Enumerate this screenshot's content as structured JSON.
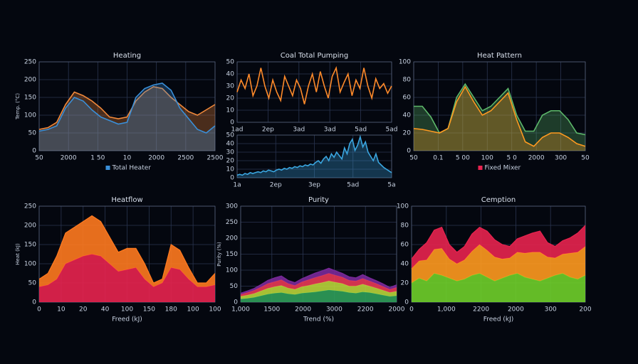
{
  "chart_data": [
    {
      "type": "area",
      "title": "Heating",
      "ylabel": "Temp. (°C)",
      "ylim": [
        0,
        250
      ],
      "yticks": [
        0,
        50,
        100,
        150,
        200,
        250
      ],
      "xlabels": [
        "50",
        "2000",
        "1 50",
        "10",
        "2000",
        "2500",
        "2500"
      ],
      "series": [
        {
          "color": "#f0883a",
          "values": [
            60,
            65,
            80,
            130,
            165,
            155,
            140,
            120,
            95,
            90,
            95,
            140,
            165,
            180,
            175,
            150,
            130,
            110,
            100,
            115,
            130
          ]
        },
        {
          "name": "Total Heater",
          "color": "#3a8fd8",
          "values": [
            55,
            60,
            70,
            120,
            150,
            140,
            115,
            95,
            85,
            75,
            80,
            150,
            175,
            185,
            190,
            170,
            120,
            90,
            60,
            50,
            70
          ]
        }
      ]
    },
    {
      "type": "line",
      "title": "Coal Total Pumping",
      "ylim": [
        0,
        50
      ],
      "yticks": [
        0,
        10,
        20,
        30,
        40,
        50
      ],
      "xlabels": [
        "1ad",
        "2ep",
        "3ad",
        "3ad",
        "5ad",
        "5ad"
      ],
      "series": [
        {
          "color": "#ff8a2a",
          "values": [
            25,
            35,
            28,
            40,
            22,
            30,
            45,
            30,
            20,
            35,
            25,
            18,
            38,
            30,
            22,
            35,
            28,
            15,
            30,
            40,
            25,
            42,
            30,
            20,
            38,
            45,
            25,
            33,
            40,
            22,
            35,
            28,
            45,
            30,
            20,
            36,
            28,
            32,
            24,
            30
          ]
        }
      ]
    },
    {
      "type": "area",
      "ylim": [
        0,
        50
      ],
      "yticks": [
        0,
        10,
        20,
        30,
        40,
        50
      ],
      "xlabels": [
        "1a",
        "2ep",
        "3ep",
        "5ad",
        "5a"
      ],
      "series": [
        {
          "color": "#3aa6e0",
          "values": [
            3,
            4,
            3,
            5,
            4,
            6,
            5,
            6,
            7,
            6,
            8,
            7,
            9,
            8,
            7,
            9,
            10,
            9,
            11,
            10,
            12,
            11,
            13,
            12,
            14,
            13,
            15,
            14,
            16,
            15,
            18,
            20,
            17,
            22,
            25,
            20,
            28,
            24,
            30,
            26,
            22,
            35,
            28,
            40,
            45,
            32,
            38,
            48,
            36,
            42,
            30,
            25,
            20,
            28,
            18,
            15,
            12,
            10,
            8,
            6
          ]
        }
      ]
    },
    {
      "type": "area",
      "title": "Heat Pattern",
      "ylim": [
        0,
        100
      ],
      "yticks": [
        0,
        20,
        40,
        60,
        80,
        100
      ],
      "xlabels": [
        "50",
        "0.1",
        "5 00",
        "100",
        "5 0",
        "2000",
        "300",
        "50"
      ],
      "series": [
        {
          "color": "#5db86a",
          "values": [
            50,
            50,
            38,
            20,
            25,
            60,
            75,
            60,
            45,
            50,
            60,
            70,
            40,
            22,
            22,
            40,
            45,
            45,
            35,
            20,
            18
          ]
        },
        {
          "name": "Fixed Mixer",
          "color": "#ff9a20",
          "values": [
            25,
            24,
            22,
            20,
            25,
            55,
            72,
            55,
            40,
            45,
            55,
            65,
            35,
            10,
            5,
            15,
            20,
            20,
            15,
            8,
            5
          ]
        }
      ]
    },
    {
      "type": "stacked",
      "title": "Heatflow",
      "ylabel": "Heat (kJ)",
      "xlabel": "Freed (kJ)",
      "ylim": [
        0,
        250
      ],
      "yticks": [
        0,
        50,
        100,
        150,
        200,
        250
      ],
      "xlabels": [
        "0",
        "10",
        "20",
        "40",
        "100",
        "150",
        "180",
        "100",
        "100"
      ],
      "series": [
        {
          "color": "#e8234f",
          "values": [
            40,
            45,
            60,
            100,
            110,
            120,
            125,
            120,
            100,
            80,
            85,
            90,
            60,
            40,
            50,
            90,
            85,
            60,
            40,
            40,
            45
          ]
        },
        {
          "color": "#ff7a1f",
          "values": [
            20,
            30,
            60,
            80,
            85,
            90,
            100,
            90,
            70,
            50,
            55,
            50,
            40,
            10,
            10,
            60,
            50,
            30,
            10,
            10,
            30
          ]
        }
      ]
    },
    {
      "type": "stacked",
      "title": "Purity",
      "ylabel": "Purity (%)",
      "xlabel": "Trend (%)",
      "ylim": [
        0,
        300
      ],
      "yticks": [
        0,
        50,
        100,
        150,
        200,
        250,
        300
      ],
      "xlabels": [
        "1,000",
        "1500",
        "2000",
        "3000",
        "2200",
        "2000"
      ],
      "series": [
        {
          "color": "#2f9f5a",
          "values": [
            10,
            12,
            15,
            20,
            25,
            28,
            30,
            26,
            24,
            28,
            30,
            32,
            35,
            38,
            36,
            34,
            30,
            28,
            32,
            30,
            26,
            22,
            18,
            20
          ]
        },
        {
          "color": "#b8d43a",
          "values": [
            8,
            10,
            12,
            15,
            18,
            20,
            22,
            18,
            16,
            20,
            22,
            25,
            26,
            28,
            26,
            24,
            20,
            22,
            24,
            20,
            18,
            15,
            12,
            14
          ]
        },
        {
          "color": "#e83a55",
          "values": [
            6,
            8,
            10,
            12,
            15,
            16,
            18,
            14,
            12,
            15,
            18,
            20,
            22,
            24,
            22,
            20,
            18,
            16,
            18,
            16,
            14,
            12,
            10,
            12
          ]
        },
        {
          "color": "#7a2a9a",
          "values": [
            4,
            5,
            6,
            8,
            10,
            12,
            12,
            10,
            9,
            10,
            12,
            14,
            15,
            16,
            14,
            12,
            11,
            10,
            12,
            10,
            9,
            8,
            6,
            8
          ]
        }
      ]
    },
    {
      "type": "stacked",
      "title": "Cemption",
      "xlabel": "Freed (kJ)",
      "ylim": [
        0,
        100
      ],
      "yticks": [
        0,
        20,
        40,
        60,
        80,
        100
      ],
      "xlabels": [
        "0",
        "1,000",
        "2200",
        "2000",
        "300",
        "200"
      ],
      "series": [
        {
          "color": "#6fcf2a",
          "values": [
            20,
            25,
            22,
            30,
            28,
            25,
            22,
            24,
            28,
            30,
            26,
            22,
            25,
            28,
            30,
            26,
            24,
            22,
            25,
            28,
            30,
            26,
            24,
            28
          ]
        },
        {
          "color": "#ff9a1f",
          "values": [
            15,
            18,
            22,
            25,
            28,
            20,
            18,
            20,
            25,
            30,
            28,
            25,
            20,
            18,
            22,
            25,
            28,
            30,
            22,
            18,
            20,
            25,
            28,
            30
          ]
        },
        {
          "color": "#e8234f",
          "values": [
            10,
            12,
            18,
            20,
            22,
            15,
            12,
            14,
            18,
            18,
            20,
            18,
            15,
            12,
            14,
            18,
            20,
            22,
            15,
            12,
            14,
            16,
            20,
            22
          ]
        }
      ]
    }
  ]
}
